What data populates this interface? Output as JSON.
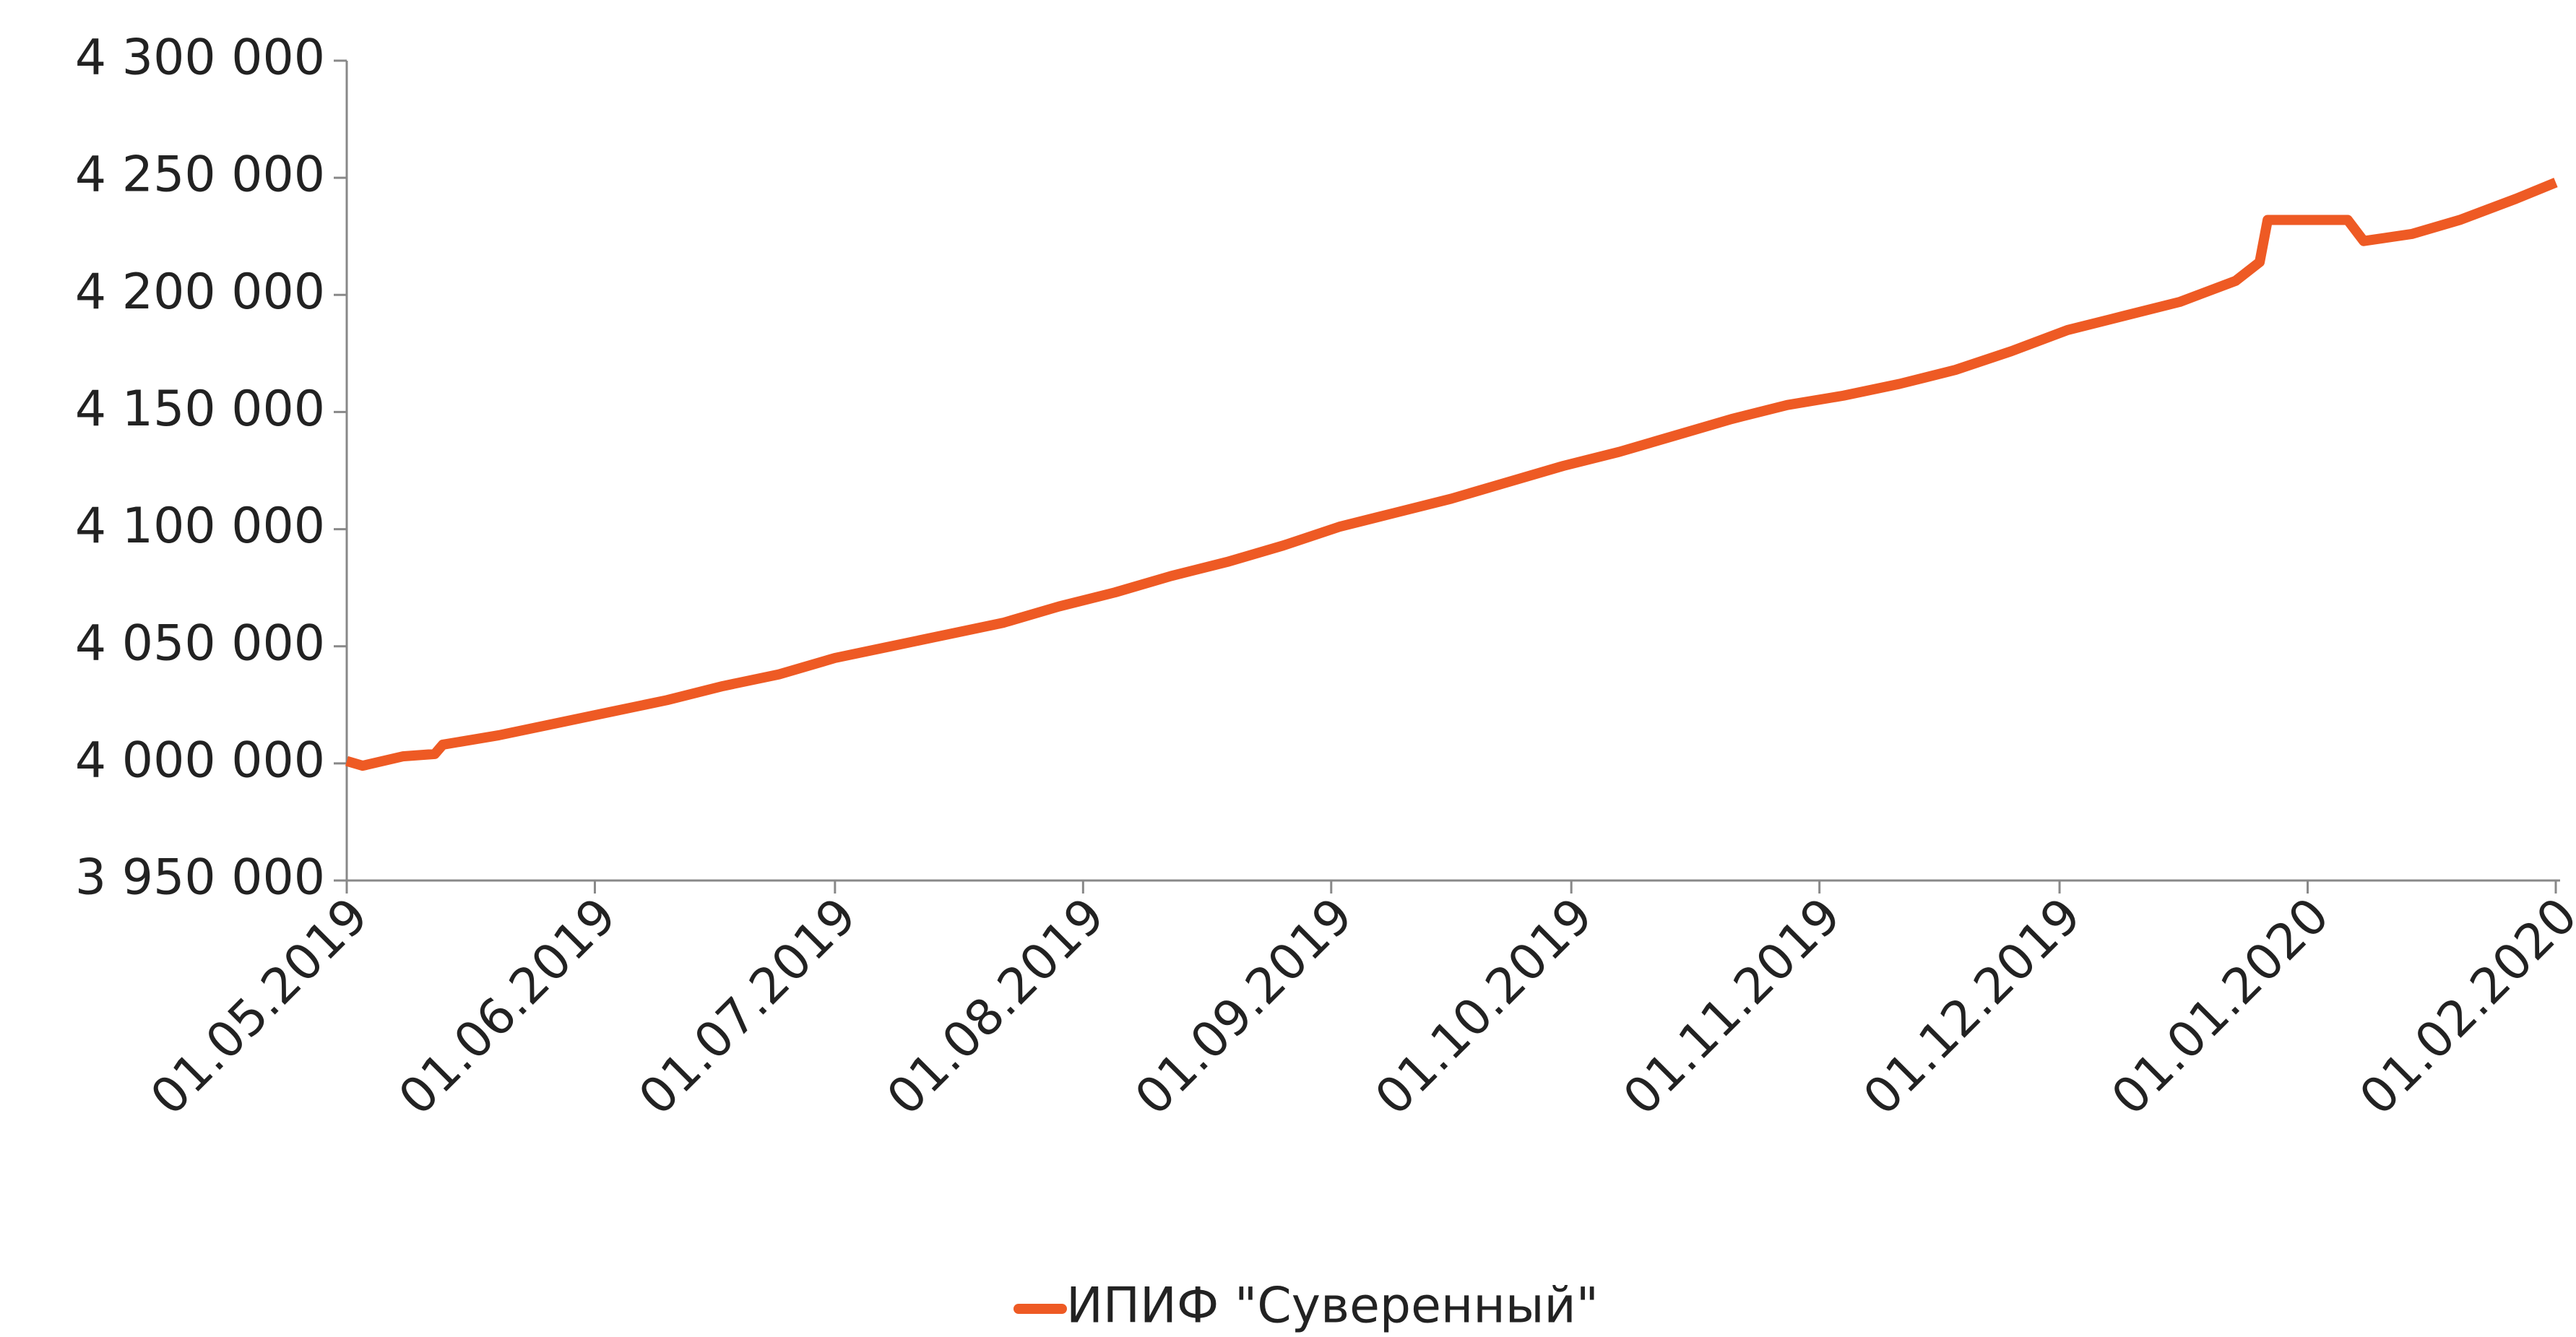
{
  "chart_data": {
    "type": "line",
    "x": [
      "2019-05-01",
      "2019-05-03",
      "2019-05-08",
      "2019-05-12",
      "2019-05-13",
      "2019-05-20",
      "2019-05-27",
      "2019-06-03",
      "2019-06-10",
      "2019-06-17",
      "2019-06-24",
      "2019-07-01",
      "2019-07-08",
      "2019-07-15",
      "2019-07-22",
      "2019-07-29",
      "2019-08-05",
      "2019-08-12",
      "2019-08-19",
      "2019-08-26",
      "2019-09-02",
      "2019-09-09",
      "2019-09-16",
      "2019-09-23",
      "2019-09-30",
      "2019-10-07",
      "2019-10-14",
      "2019-10-21",
      "2019-10-28",
      "2019-11-04",
      "2019-11-11",
      "2019-11-18",
      "2019-11-25",
      "2019-12-02",
      "2019-12-09",
      "2019-12-16",
      "2019-12-23",
      "2019-12-26",
      "2019-12-27",
      "2020-01-06",
      "2020-01-08",
      "2020-01-14",
      "2020-01-20",
      "2020-01-27",
      "2020-02-01"
    ],
    "series": [
      {
        "name": "ИПИФ \"Суверенный\"",
        "color": "#ee5a24",
        "values": [
          4001000,
          3999000,
          4003000,
          4004000,
          4008000,
          4012000,
          4017000,
          4022000,
          4027000,
          4033000,
          4038000,
          4045000,
          4050000,
          4055000,
          4060000,
          4067000,
          4073000,
          4080000,
          4086000,
          4093000,
          4101000,
          4107000,
          4113000,
          4120000,
          4127000,
          4133000,
          4140000,
          4147000,
          4153000,
          4157000,
          4162000,
          4168000,
          4176000,
          4185000,
          4191000,
          4197000,
          4206000,
          4214000,
          4232000,
          4232000,
          4223000,
          4226000,
          4232000,
          4241000,
          4248000
        ]
      }
    ],
    "xlim": [
      "2019-05-01",
      "2020-02-01"
    ],
    "xticks": [
      {
        "value": "2019-05-01",
        "label": "01.05.2019"
      },
      {
        "value": "2019-06-01",
        "label": "01.06.2019"
      },
      {
        "value": "2019-07-01",
        "label": "01.07.2019"
      },
      {
        "value": "2019-08-01",
        "label": "01.08.2019"
      },
      {
        "value": "2019-09-01",
        "label": "01.09.2019"
      },
      {
        "value": "2019-10-01",
        "label": "01.10.2019"
      },
      {
        "value": "2019-11-01",
        "label": "01.11.2019"
      },
      {
        "value": "2019-12-01",
        "label": "01.12.2019"
      },
      {
        "value": "2020-01-01",
        "label": "01.01.2020"
      },
      {
        "value": "2020-02-01",
        "label": "01.02.2020"
      }
    ],
    "ylim": [
      3950000,
      4300000
    ],
    "yticks": [
      {
        "value": 3950000,
        "label": "3 950 000"
      },
      {
        "value": 4000000,
        "label": "4 000 000"
      },
      {
        "value": 4050000,
        "label": "4 050 000"
      },
      {
        "value": 4100000,
        "label": "4 100 000"
      },
      {
        "value": 4150000,
        "label": "4 150 000"
      },
      {
        "value": 4200000,
        "label": "4 200 000"
      },
      {
        "value": 4250000,
        "label": "4 250 000"
      },
      {
        "value": 4300000,
        "label": "4 300 000"
      }
    ],
    "grid": false,
    "legend": "bottom"
  }
}
